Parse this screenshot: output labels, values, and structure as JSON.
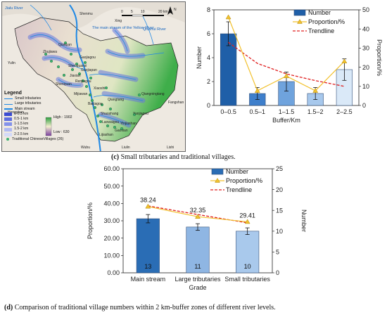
{
  "map": {
    "places": [
      "Yulin",
      "Shenmu",
      "Xing",
      "Shenquan",
      "Qianpan",
      "Fangshan",
      "Lishi",
      "Liulin",
      "Wubu",
      "Shaoshang",
      "Hengshan",
      "Zhujiawa",
      "Gaojiagou",
      "Gaojiapan",
      "Xiaoshi",
      "Qiangningtang",
      "Yanjiagou",
      "Jiaxian",
      "Qiangtang",
      "Shenquansi",
      "Laowaigou",
      "Gaoxian",
      "Lijiashan",
      "Yinjiashan",
      "Mijiawan",
      "Renjiagou",
      "Baijiagou"
    ],
    "rivers": {
      "jialu": "Jialu River",
      "main": "The main stream of the Yellow River",
      "qiushui": "Qiushui River"
    },
    "scale": {
      "labels": [
        "0",
        "5",
        "10",
        "20 km"
      ]
    },
    "north": "N",
    "legend": {
      "title": "Legend",
      "small_tributaries": "Small tributaries",
      "large_tributaries": "Large tributaries",
      "main_stream": "Main stream",
      "buffers": [
        {
          "label": "0-0.5 km",
          "color": "#3b4bd1"
        },
        {
          "label": "0.5-1 km",
          "color": "#5d6ee0"
        },
        {
          "label": "1-1.5 km",
          "color": "#8492ea"
        },
        {
          "label": "1.5-2 km",
          "color": "#afb9f2"
        },
        {
          "label": "2-2.5 km",
          "color": "#d4daf8"
        }
      ],
      "villages": "Traditional ChineseVillages (26)",
      "high": "High : 1902",
      "low": "Low : 630"
    }
  },
  "chart_c": {
    "caption_letter": "(c)",
    "caption_text": " Small tributaries and traditional villages.",
    "chart_data": {
      "type": "bar",
      "categories": [
        "0–0.5",
        "0.5–1",
        "1–1.5",
        "1.5–2",
        "2–2.5"
      ],
      "series": [
        {
          "name": "Number",
          "type": "bar",
          "axis": "left",
          "values": [
            6,
            1,
            2,
            1,
            3
          ],
          "errors": [
            1,
            0.5,
            0.8,
            0.5,
            0.9
          ],
          "colors": [
            "#1f5fa8",
            "#3e7fcb",
            "#6fa3dd",
            "#a7c8ec",
            "#dae9f8"
          ]
        },
        {
          "name": "Proportion/%",
          "type": "line",
          "axis": "right",
          "color": "#f2c12e",
          "values": [
            46.15,
            7.69,
            15.38,
            7.69,
            23.08
          ]
        },
        {
          "name": "Trendline",
          "type": "dashed",
          "axis": "right",
          "color": "#e02020",
          "values": [
            33.0,
            22.0,
            16.5,
            13.0,
            10.0
          ]
        }
      ],
      "xlabel": "Buffer/Km",
      "ylabel": "Number",
      "y2label": "Proportion/%",
      "ylim": [
        0,
        8
      ],
      "yticks": [
        0,
        2,
        4,
        6,
        8
      ],
      "y2lim": [
        0,
        50
      ],
      "y2ticks": [
        0,
        10,
        20,
        30,
        40,
        50
      ],
      "legend": "top-right",
      "grid": false
    }
  },
  "chart_d": {
    "caption_letter": "(d)",
    "caption_text": " Comparison of traditional village numbers within 2 km-buffer zones of different river levels.",
    "chart_data": {
      "type": "bar",
      "categories": [
        "Main stream",
        "Large tributaries",
        "Small tributaries"
      ],
      "series": [
        {
          "name": "Number",
          "type": "bar",
          "axis": "right",
          "values": [
            13,
            11,
            10
          ],
          "value_labels": [
            "13",
            "11",
            "10"
          ],
          "errors": [
            1,
            0.8,
            0.8
          ],
          "colors": [
            "#2a6db5",
            "#8fb6e3",
            "#a9c9ec"
          ]
        },
        {
          "name": "Proportion/%",
          "type": "line",
          "axis": "left",
          "color": "#f2c12e",
          "values": [
            38.24,
            32.35,
            29.41
          ],
          "value_labels": [
            "38.24",
            "32.35",
            "29.41"
          ]
        },
        {
          "name": "Trendline",
          "type": "dashed",
          "axis": "left",
          "color": "#e02020",
          "values": [
            38.6,
            33.6,
            28.8
          ]
        }
      ],
      "xlabel": "Grade",
      "ylabel": "Proportion/%",
      "y2label": "Number",
      "ylim": [
        0,
        60
      ],
      "yticks": [
        "0.00",
        "10.00",
        "20.00",
        "30.00",
        "40.00",
        "50.00",
        "60.00"
      ],
      "y2lim": [
        0,
        25
      ],
      "y2ticks": [
        0,
        5,
        10,
        15,
        20,
        25
      ],
      "legend": "top-right",
      "grid": false
    }
  }
}
